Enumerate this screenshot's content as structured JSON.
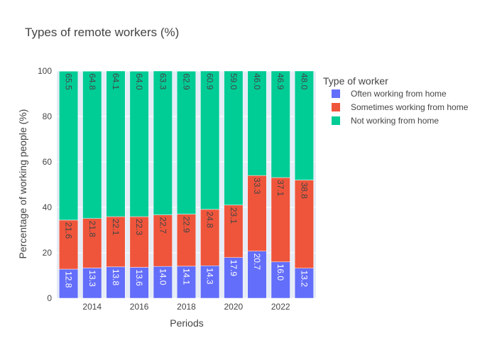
{
  "chart_data": {
    "type": "bar",
    "stacked": true,
    "title": "Types of remote workers (%)",
    "xlabel": "Periods",
    "ylabel": "Percentage of working people (%)",
    "ylim": [
      0,
      100
    ],
    "yticks": [
      0,
      20,
      40,
      60,
      80,
      100
    ],
    "categories": [
      2013,
      2014,
      2015,
      2016,
      2017,
      2018,
      2019,
      2020,
      2021,
      2022,
      2023
    ],
    "xticks": [
      2014,
      2016,
      2018,
      2020,
      2022
    ],
    "legend_title": "Type of worker",
    "legend_position": "right",
    "series": [
      {
        "name": "Often working from home",
        "color": "#636efa",
        "label_color": "#ffffff",
        "values": [
          12.8,
          13.3,
          13.8,
          13.6,
          14.0,
          14.1,
          14.3,
          17.9,
          20.7,
          16.0,
          13.2
        ]
      },
      {
        "name": "Sometimes working from home",
        "color": "#ef553b",
        "label_color": "#444444",
        "values": [
          21.6,
          21.8,
          22.1,
          22.3,
          22.7,
          22.9,
          24.8,
          23.1,
          33.3,
          37.1,
          38.8
        ]
      },
      {
        "name": "Not working from home",
        "color": "#00cc96",
        "label_color": "#444444",
        "values": [
          65.5,
          64.8,
          64.1,
          64.0,
          63.3,
          62.9,
          60.9,
          59.0,
          46.0,
          46.9,
          48.0
        ]
      }
    ],
    "plot_background": "#e5ecf6",
    "gridlines": true
  }
}
